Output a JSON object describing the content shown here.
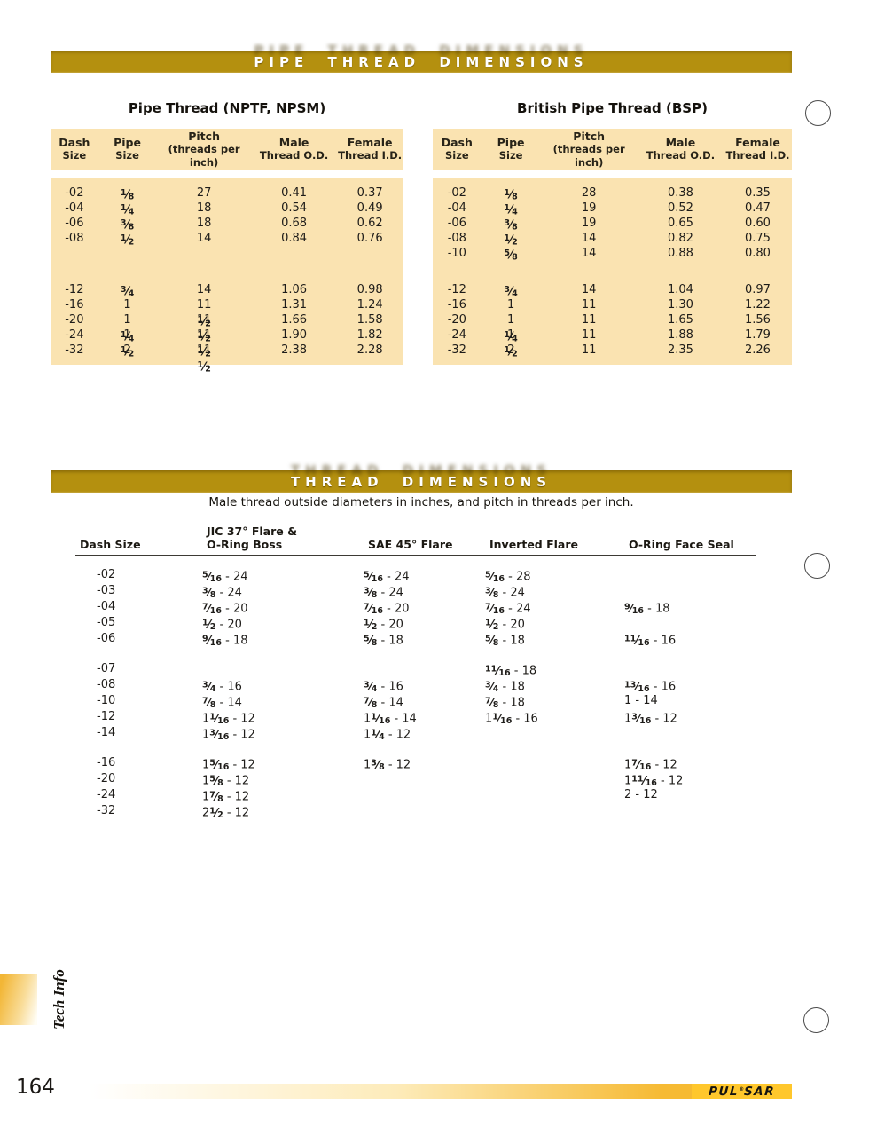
{
  "colors": {
    "gold_bar": "#B4900F",
    "table_bg": "#FAE3B1",
    "logo_yellow": "#FFC72C"
  },
  "page": {
    "number": "164",
    "side_tab_label": "Tech Info"
  },
  "brand": {
    "pre": "PUL",
    "mark": "®",
    "post": "SAR"
  },
  "pipe_section": {
    "title": "PIPE THREAD DIMENSIONS",
    "tables": [
      {
        "title": "Pipe Thread (NPTF, NPSM)",
        "headers": [
          [
            "Dash",
            "Size"
          ],
          [
            "Pipe",
            "Size"
          ],
          [
            "Pitch",
            "(threads per inch)"
          ],
          [
            "Male",
            "Thread O.D."
          ],
          [
            "Female",
            "Thread I.D."
          ]
        ],
        "groups": [
          [
            [
              "-02",
              "1/8",
              "27",
              "0.41",
              "0.37"
            ],
            [
              "-04",
              "1/4",
              "18",
              "0.54",
              "0.49"
            ],
            [
              "-06",
              "3/8",
              "18",
              "0.68",
              "0.62"
            ],
            [
              "-08",
              "1/2",
              "14",
              "0.84",
              "0.76"
            ]
          ],
          [
            [
              "-12",
              "3/4",
              "14",
              "1.06",
              "0.98"
            ],
            [
              "-16",
              "1",
              "11 1/2",
              "1.31",
              "1.24"
            ],
            [
              "-20",
              "1 1/4",
              "11 1/2",
              "1.66",
              "1.58"
            ],
            [
              "-24",
              "1 1/2",
              "11 1/2",
              "1.90",
              "1.82"
            ],
            [
              "-32",
              "2",
              "11 1/2",
              "2.38",
              "2.28"
            ]
          ]
        ]
      },
      {
        "title": "British Pipe Thread (BSP)",
        "headers": [
          [
            "Dash",
            "Size"
          ],
          [
            "Pipe",
            "Size"
          ],
          [
            "Pitch",
            "(threads per inch)"
          ],
          [
            "Male",
            "Thread O.D."
          ],
          [
            "Female",
            "Thread I.D."
          ]
        ],
        "groups": [
          [
            [
              "-02",
              "1/8",
              "28",
              "0.38",
              "0.35"
            ],
            [
              "-04",
              "1/4",
              "19",
              "0.52",
              "0.47"
            ],
            [
              "-06",
              "3/8",
              "19",
              "0.65",
              "0.60"
            ],
            [
              "-08",
              "1/2",
              "14",
              "0.82",
              "0.75"
            ],
            [
              "-10",
              "5/8",
              "14",
              "0.88",
              "0.80"
            ]
          ],
          [
            [
              "-12",
              "3/4",
              "14",
              "1.04",
              "0.97"
            ],
            [
              "-16",
              "1",
              "11",
              "1.30",
              "1.22"
            ],
            [
              "-20",
              "1 1/4",
              "11",
              "1.65",
              "1.56"
            ],
            [
              "-24",
              "1 1/2",
              "11",
              "1.88",
              "1.79"
            ],
            [
              "-32",
              "2",
              "11",
              "2.35",
              "2.26"
            ]
          ]
        ]
      }
    ]
  },
  "thread_section": {
    "title": "THREAD DIMENSIONS",
    "subtitle": "Male thread outside diameters in inches, and pitch in threads per inch.",
    "columns": [
      [
        "Dash Size"
      ],
      [
        "JIC 37° Flare &",
        "O-Ring Boss"
      ],
      [
        "SAE 45° Flare"
      ],
      [
        "Inverted Flare"
      ],
      [
        "O-Ring Face Seal"
      ]
    ],
    "groups": [
      [
        [
          "-02",
          "5/16 - 24",
          "5/16 - 24",
          "5/16 - 28",
          ""
        ],
        [
          "-03",
          "3/8 - 24",
          "3/8 - 24",
          "3/8 - 24",
          ""
        ],
        [
          "-04",
          "7/16 - 20",
          "7/16 - 20",
          "7/16 - 24",
          "9/16 - 18"
        ],
        [
          "-05",
          "1/2 - 20",
          "1/2 - 20",
          "1/2 - 20",
          ""
        ],
        [
          "-06",
          "9/16 - 18",
          "5/8 - 18",
          "5/8 - 18",
          "11/16 - 16"
        ]
      ],
      [
        [
          "-07",
          "",
          "",
          "11/16 - 18",
          ""
        ],
        [
          "-08",
          "3/4 - 16",
          "3/4 - 16",
          "3/4 - 18",
          "13/16 - 16"
        ],
        [
          "-10",
          "7/8 - 14",
          "7/8 - 14",
          "7/8 - 18",
          "1 - 14"
        ],
        [
          "-12",
          "1 1/16 - 12",
          "1 1/16 - 14",
          "1 1/16 - 16",
          "1 3/16 - 12"
        ],
        [
          "-14",
          "1 3/16 - 12",
          "1 1/4 - 12",
          "",
          ""
        ]
      ],
      [
        [
          "-16",
          "1 5/16 - 12",
          "1 3/8 - 12",
          "",
          "1 7/16 - 12"
        ],
        [
          "-20",
          "1 5/8 - 12",
          "",
          "",
          "1 11/16 - 12"
        ],
        [
          "-24",
          "1 7/8 - 12",
          "",
          "",
          "2 - 12"
        ],
        [
          "-32",
          "2 1/2 - 12",
          "",
          "",
          ""
        ]
      ]
    ]
  }
}
